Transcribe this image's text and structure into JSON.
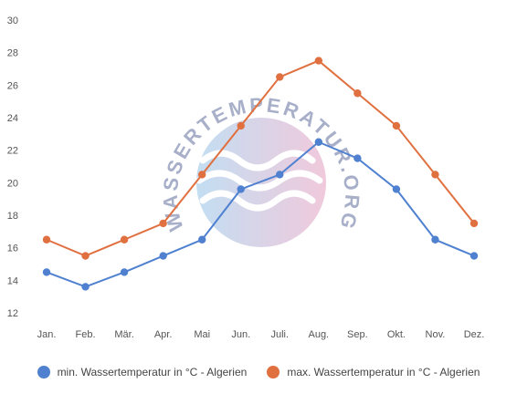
{
  "watermark": "WASSERTEMPERATUR.ORG",
  "chart_data": {
    "type": "line",
    "categories": [
      "Jan.",
      "Feb.",
      "Mär.",
      "Apr.",
      "Mai",
      "Jun.",
      "Juli.",
      "Aug.",
      "Sep.",
      "Okt.",
      "Nov.",
      "Dez."
    ],
    "ylim": [
      12,
      30
    ],
    "yticks": [
      12,
      14,
      16,
      18,
      20,
      22,
      24,
      26,
      28,
      30
    ],
    "grid": false,
    "legend_position": "bottom",
    "series": [
      {
        "name": "min. Wassertemperatur in °C - Algerien",
        "color": "#4f81d0",
        "values": [
          14.5,
          13.6,
          14.5,
          15.5,
          16.5,
          19.6,
          20.5,
          22.5,
          21.5,
          19.6,
          16.5,
          15.5
        ]
      },
      {
        "name": "max. Wassertemperatur in °C - Algerien",
        "color": "#e07040",
        "values": [
          16.5,
          15.5,
          16.5,
          17.5,
          20.5,
          23.5,
          26.5,
          27.5,
          25.5,
          23.5,
          20.5,
          17.5
        ]
      }
    ]
  }
}
